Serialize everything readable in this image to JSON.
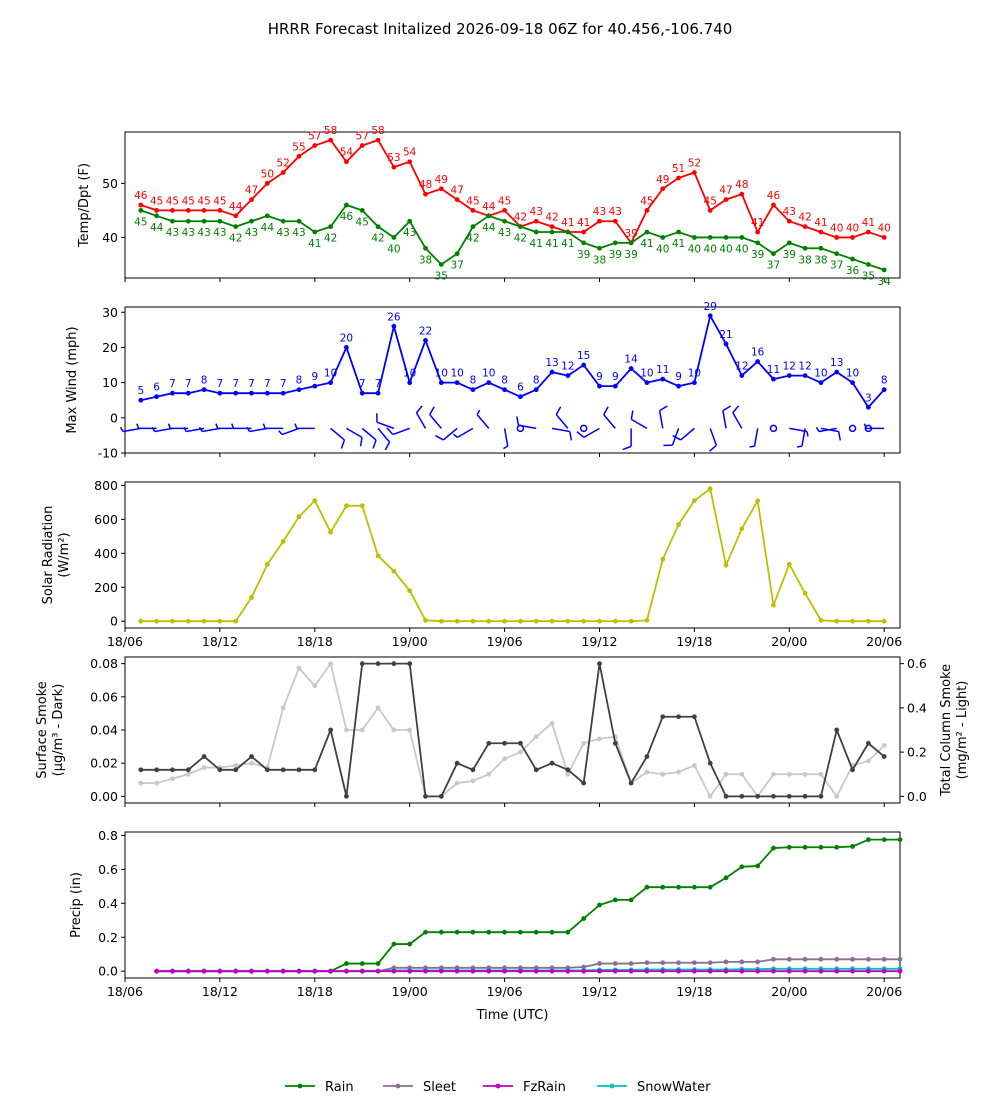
{
  "title": "HRRR Forecast Initalized 2026-09-18 06Z for 40.456,-106.740",
  "colors": {
    "temp": "#ff0000",
    "dewpoint": "#008000",
    "wind": "#0000ff",
    "solar": "#bfbf00",
    "smoke_dark": "#404040",
    "smoke_light": "#c8c8c8",
    "rain": "#008000",
    "sleet": "#8a6f8f",
    "fzrain": "#c000c0",
    "snow": "#00bfbf"
  },
  "chart_data": [
    {
      "type": "line",
      "name": "temp_dewpoint",
      "ylabel": "Temp/Dpt (F)",
      "x_start": "2026-09-18 07:00",
      "x_step_hours": 1,
      "ylim": [
        32.5,
        59.5
      ],
      "yticks": [
        40,
        50
      ],
      "series": [
        {
          "name": "Temp",
          "values": [
            46,
            45,
            45,
            45,
            45,
            45,
            44,
            47,
            50,
            52,
            55,
            57,
            58,
            54,
            57,
            58,
            53,
            54,
            48,
            49,
            47,
            45,
            44,
            45,
            42,
            43,
            42,
            41,
            41,
            43,
            43,
            39,
            45,
            49,
            51,
            52,
            45,
            47,
            48,
            41,
            46,
            43,
            42,
            41,
            40,
            40,
            41,
            40
          ]
        },
        {
          "name": "Dewpoint",
          "values": [
            45,
            44,
            43,
            43,
            43,
            43,
            42,
            43,
            44,
            43,
            43,
            41,
            42,
            46,
            45,
            42,
            40,
            43,
            38,
            35,
            37,
            42,
            44,
            43,
            42,
            41,
            41,
            41,
            39,
            38,
            39,
            39,
            41,
            40,
            41,
            40,
            40,
            40,
            40,
            39,
            37,
            39,
            38,
            38,
            37,
            36,
            35,
            34
          ]
        }
      ]
    },
    {
      "type": "line",
      "name": "wind",
      "ylabel": "Max Wind (mph)",
      "ylim": [
        -10,
        31.5
      ],
      "yticks": [
        -10,
        0,
        10,
        20,
        30
      ],
      "series": [
        {
          "name": "Max Wind",
          "values": [
            5,
            6,
            7,
            7,
            8,
            7,
            7,
            7,
            7,
            7,
            8,
            9,
            10,
            20,
            7,
            7,
            26,
            10,
            22,
            10,
            10,
            8,
            10,
            8,
            6,
            8,
            13,
            12,
            15,
            9,
            9,
            14,
            10,
            11,
            9,
            10,
            29,
            21,
            12,
            16,
            11,
            12,
            12,
            10,
            13,
            10,
            3,
            8
          ]
        }
      ],
      "barbs": {
        "y": -3,
        "direction_deg": [
          260,
          270,
          260,
          270,
          260,
          260,
          270,
          270,
          260,
          270,
          250,
          270,
          130,
          120,
          130,
          140,
          290,
          250,
          330,
          320,
          230,
          240,
          320,
          170,
          0,
          280,
          100,
          320,
          0,
          240,
          320,
          180,
          300,
          350,
          200,
          230,
          160,
          350,
          330,
          190,
          0,
          100,
          190,
          100,
          260,
          0,
          0,
          270
        ],
        "speed_kt": [
          5,
          5,
          5,
          5,
          5,
          5,
          5,
          5,
          5,
          5,
          5,
          5,
          10,
          10,
          10,
          10,
          10,
          10,
          10,
          10,
          10,
          5,
          5,
          5,
          0,
          10,
          10,
          10,
          0,
          10,
          10,
          10,
          10,
          10,
          10,
          10,
          10,
          10,
          10,
          5,
          0,
          5,
          5,
          10,
          5,
          0,
          0,
          5
        ]
      }
    },
    {
      "type": "line",
      "name": "solar",
      "ylabel": "Solar Radiation",
      "ylabel2": "(W/m²)",
      "ylim": [
        -40,
        820
      ],
      "yticks": [
        0,
        200,
        400,
        600,
        800
      ],
      "series": [
        {
          "name": "Solar Radiation",
          "values": [
            0,
            0,
            0,
            0,
            0,
            0,
            0,
            140,
            335,
            470,
            615,
            710,
            525,
            680,
            680,
            385,
            295,
            180,
            5,
            0,
            0,
            0,
            0,
            0,
            0,
            0,
            0,
            0,
            0,
            0,
            0,
            0,
            5,
            365,
            570,
            710,
            780,
            330,
            545,
            710,
            95,
            335,
            165,
            5,
            0,
            0,
            0,
            0
          ]
        }
      ]
    },
    {
      "type": "line",
      "name": "smoke",
      "ylabel": "Surface Smoke",
      "ylabel2": "(μg/m³ - Dark)",
      "ylabel_right": "Total Column Smoke",
      "ylabel_right2": "(mg/m² - Light)",
      "ylim": [
        -0.004,
        0.084
      ],
      "ylim_right": [
        -0.03,
        0.63
      ],
      "yticks": [
        0.0,
        0.02,
        0.04,
        0.06,
        0.08
      ],
      "yticks_right": [
        0.0,
        0.2,
        0.4,
        0.6
      ],
      "series": [
        {
          "name": "Surface Smoke",
          "values": [
            0.016,
            0.016,
            0.016,
            0.016,
            0.024,
            0.016,
            0.016,
            0.024,
            0.016,
            0.016,
            0.016,
            0.016,
            0.04,
            0.0,
            0.08,
            0.08,
            0.08,
            0.08,
            0.0,
            0.0,
            0.02,
            0.016,
            0.032,
            0.032,
            0.032,
            0.016,
            0.02,
            0.016,
            0.008,
            0.08,
            0.032,
            0.008,
            0.024,
            0.048,
            0.048,
            0.048,
            0.02,
            0.0,
            0.0,
            0.0,
            0.0,
            0.0,
            0.0,
            0.0,
            0.04,
            0.016,
            0.032,
            0.024
          ]
        },
        {
          "name": "Total Column Smoke",
          "axis": "right",
          "values": [
            0.06,
            0.06,
            0.08,
            0.1,
            0.13,
            0.13,
            0.14,
            0.15,
            0.13,
            0.4,
            0.58,
            0.5,
            0.6,
            0.3,
            0.3,
            0.4,
            0.3,
            0.3,
            0.0,
            0.0,
            0.06,
            0.07,
            0.1,
            0.17,
            0.2,
            0.27,
            0.33,
            0.1,
            0.24,
            0.26,
            0.27,
            0.06,
            0.11,
            0.1,
            0.11,
            0.14,
            0.0,
            0.1,
            0.1,
            0.0,
            0.1,
            0.1,
            0.1,
            0.1,
            0.0,
            0.14,
            0.16,
            0.23
          ]
        }
      ]
    },
    {
      "type": "line",
      "name": "precip",
      "ylabel": "Precip (in)",
      "xlabel": "Time (UTC)",
      "ylim": [
        -0.04,
        0.82
      ],
      "yticks": [
        0.0,
        0.2,
        0.4,
        0.6,
        0.8
      ],
      "xticks": [
        "18/06",
        "18/12",
        "18/18",
        "19/00",
        "19/06",
        "19/12",
        "19/18",
        "20/00",
        "20/06"
      ],
      "series": [
        {
          "name": "Rain",
          "start_index": 1,
          "values": [
            0,
            0,
            0,
            0,
            0,
            0,
            0,
            0,
            0,
            0,
            0,
            0,
            0.045,
            0.045,
            0.045,
            0.16,
            0.16,
            0.23,
            0.23,
            0.23,
            0.23,
            0.23,
            0.23,
            0.23,
            0.23,
            0.23,
            0.23,
            0.31,
            0.39,
            0.42,
            0.42,
            0.495,
            0.495,
            0.495,
            0.495,
            0.495,
            0.55,
            0.615,
            0.62,
            0.725,
            0.73,
            0.73,
            0.73,
            0.73,
            0.735,
            0.775,
            0.775,
            0.775
          ]
        },
        {
          "name": "Sleet",
          "start_index": 1,
          "values": [
            0,
            0,
            0,
            0,
            0,
            0,
            0,
            0,
            0,
            0,
            0,
            0,
            0,
            0,
            0,
            0.02,
            0.02,
            0.02,
            0.02,
            0.02,
            0.02,
            0.02,
            0.02,
            0.02,
            0.02,
            0.02,
            0.02,
            0.025,
            0.045,
            0.045,
            0.045,
            0.05,
            0.05,
            0.05,
            0.05,
            0.05,
            0.055,
            0.055,
            0.055,
            0.07,
            0.07,
            0.07,
            0.07,
            0.07,
            0.07,
            0.07,
            0.07,
            0.07
          ]
        },
        {
          "name": "FzRain",
          "start_index": 1,
          "values": [
            0,
            0,
            0,
            0,
            0,
            0,
            0,
            0,
            0,
            0,
            0,
            0,
            0,
            0,
            0,
            0,
            0,
            0,
            0,
            0,
            0,
            0,
            0,
            0,
            0,
            0,
            0,
            0,
            0,
            0,
            0,
            0,
            0,
            0,
            0,
            0,
            0,
            0,
            0,
            0,
            0,
            0,
            0,
            0,
            0,
            0,
            0,
            0
          ]
        },
        {
          "name": "SnowWater",
          "start_index": 1,
          "values": [
            0,
            0,
            0,
            0,
            0,
            0,
            0,
            0,
            0,
            0,
            0,
            0,
            0,
            0,
            0,
            0.005,
            0.005,
            0.005,
            0.005,
            0.005,
            0.005,
            0.005,
            0.005,
            0.005,
            0.005,
            0.005,
            0.005,
            0.005,
            0.008,
            0.008,
            0.008,
            0.01,
            0.01,
            0.01,
            0.01,
            0.01,
            0.01,
            0.012,
            0.012,
            0.014,
            0.014,
            0.014,
            0.014,
            0.014,
            0.014,
            0.014,
            0.014,
            0.014
          ]
        }
      ]
    }
  ],
  "legend": {
    "position": "bottom-center",
    "entries": [
      "Rain",
      "Sleet",
      "FzRain",
      "SnowWater"
    ]
  }
}
